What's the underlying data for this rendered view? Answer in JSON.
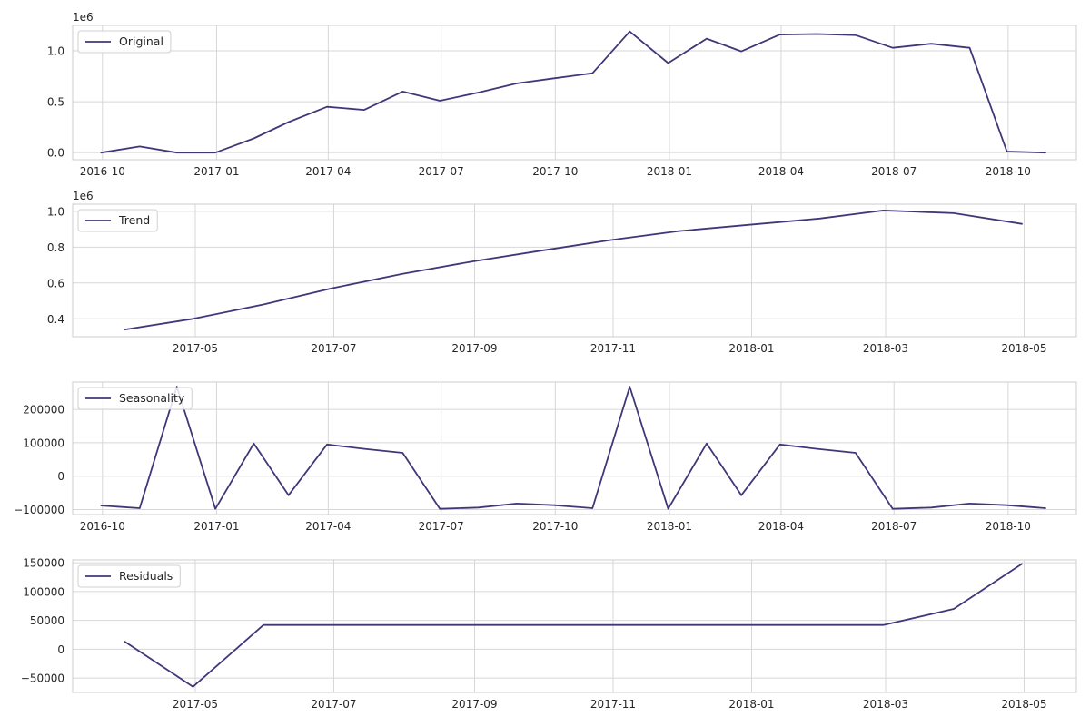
{
  "colors": {
    "line": "#3f3878",
    "grid": "#d7d7d7",
    "frame": "#cccccc",
    "text": "#262626",
    "background": "#ffffff"
  },
  "chart_data": [
    {
      "type": "line",
      "legend": "Original",
      "legend_position": "upper-left",
      "grid": true,
      "y_exponent_label": "1e6",
      "xlim": [
        "2016-09-07",
        "2018-11-25"
      ],
      "ylim": [
        -70000,
        1250000
      ],
      "xticks": [
        "2016-10-01",
        "2017-01-01",
        "2017-04-01",
        "2017-07-01",
        "2017-10-01",
        "2018-01-01",
        "2018-04-01",
        "2018-07-01",
        "2018-10-01"
      ],
      "xtick_labels": [
        "2016-10",
        "2017-01",
        "2017-04",
        "2017-07",
        "2017-10",
        "2018-01",
        "2018-04",
        "2018-07",
        "2018-10"
      ],
      "yticks": [
        0,
        500000,
        1000000
      ],
      "ytick_labels": [
        "0.0",
        "0.5",
        "1.0"
      ],
      "series": [
        {
          "x": [
            "2016-09-30",
            "2016-10-31",
            "2016-11-30",
            "2016-12-31",
            "2017-01-31",
            "2017-02-28",
            "2017-03-31",
            "2017-04-30",
            "2017-05-31",
            "2017-06-30",
            "2017-07-31",
            "2017-08-31",
            "2017-09-30",
            "2017-10-31",
            "2017-11-30",
            "2017-12-31",
            "2018-01-31",
            "2018-02-28",
            "2018-03-31",
            "2018-04-30",
            "2018-05-31",
            "2018-06-30",
            "2018-07-31",
            "2018-08-31",
            "2018-09-30",
            "2018-10-31"
          ],
          "y": [
            0,
            60000,
            0,
            0,
            140000,
            300000,
            450000,
            420000,
            600000,
            510000,
            590000,
            680000,
            730000,
            780000,
            1190000,
            880000,
            1120000,
            995000,
            1160000,
            1165000,
            1155000,
            1030000,
            1070000,
            1030000,
            10000,
            0
          ]
        }
      ]
    },
    {
      "type": "line",
      "legend": "Trend",
      "legend_position": "upper-left",
      "grid": true,
      "y_exponent_label": "1e6",
      "xlim": [
        "2017-03-08",
        "2018-05-24"
      ],
      "ylim": [
        0.3,
        1.04
      ],
      "xticks": [
        "2017-05-01",
        "2017-07-01",
        "2017-09-01",
        "2017-11-01",
        "2018-01-01",
        "2018-03-01",
        "2018-05-01"
      ],
      "xtick_labels": [
        "2017-05",
        "2017-07",
        "2017-09",
        "2017-11",
        "2018-01",
        "2018-03",
        "2018-05"
      ],
      "yticks": [
        0.4,
        0.6,
        0.8,
        1.0
      ],
      "ytick_labels": [
        "0.4",
        "0.6",
        "0.8",
        "1.0"
      ],
      "series": [
        {
          "x": [
            "2017-03-31",
            "2017-04-30",
            "2017-05-31",
            "2017-06-30",
            "2017-07-31",
            "2017-08-31",
            "2017-09-30",
            "2017-10-31",
            "2017-11-30",
            "2017-12-31",
            "2018-01-31",
            "2018-02-28",
            "2018-03-31",
            "2018-04-30"
          ],
          "y": [
            0.34,
            0.4,
            0.48,
            0.57,
            0.65,
            0.72,
            0.78,
            0.84,
            0.89,
            0.925,
            0.96,
            1.005,
            0.99,
            0.93
          ]
        }
      ]
    },
    {
      "type": "line",
      "legend": "Seasonality",
      "legend_position": "upper-left",
      "grid": true,
      "y_exponent_label": "",
      "xlim": [
        "2016-09-07",
        "2018-11-25"
      ],
      "ylim": [
        -115000,
        282000
      ],
      "xticks": [
        "2016-10-01",
        "2017-01-01",
        "2017-04-01",
        "2017-07-01",
        "2017-10-01",
        "2018-01-01",
        "2018-04-01",
        "2018-07-01",
        "2018-10-01"
      ],
      "xtick_labels": [
        "2016-10",
        "2017-01",
        "2017-04",
        "2017-07",
        "2017-10",
        "2018-01",
        "2018-04",
        "2018-07",
        "2018-10"
      ],
      "yticks": [
        -100000,
        0,
        100000,
        200000
      ],
      "ytick_labels": [
        "−100000",
        "0",
        "100000",
        "200000"
      ],
      "series": [
        {
          "x": [
            "2016-09-30",
            "2016-10-31",
            "2016-11-30",
            "2016-12-31",
            "2017-01-31",
            "2017-02-28",
            "2017-03-31",
            "2017-04-30",
            "2017-05-31",
            "2017-06-30",
            "2017-07-31",
            "2017-08-31",
            "2017-09-30",
            "2017-10-31",
            "2017-11-30",
            "2017-12-31",
            "2018-01-31",
            "2018-02-28",
            "2018-03-31",
            "2018-04-30",
            "2018-05-31",
            "2018-06-30",
            "2018-07-31",
            "2018-08-31",
            "2018-09-30",
            "2018-10-31"
          ],
          "y": [
            -88000,
            -96000,
            268000,
            -98000,
            98000,
            -57000,
            95000,
            82000,
            70000,
            -98000,
            -94000,
            -82000,
            -87000,
            -96000,
            268000,
            -98000,
            98000,
            -57000,
            95000,
            82000,
            70000,
            -98000,
            -94000,
            -82000,
            -87000,
            -96000
          ]
        }
      ]
    },
    {
      "type": "line",
      "legend": "Residuals",
      "legend_position": "upper-left",
      "grid": true,
      "y_exponent_label": "",
      "xlim": [
        "2017-03-08",
        "2018-05-24"
      ],
      "ylim": [
        -75000,
        155000
      ],
      "xticks": [
        "2017-05-01",
        "2017-07-01",
        "2017-09-01",
        "2017-11-01",
        "2018-01-01",
        "2018-03-01",
        "2018-05-01"
      ],
      "xtick_labels": [
        "2017-05",
        "2017-07",
        "2017-09",
        "2017-11",
        "2018-01",
        "2018-03",
        "2018-05"
      ],
      "yticks": [
        -50000,
        0,
        50000,
        100000,
        150000
      ],
      "ytick_labels": [
        "−50000",
        "0",
        "50000",
        "100000",
        "150000"
      ],
      "series": [
        {
          "x": [
            "2017-03-31",
            "2017-04-30",
            "2017-05-31",
            "2017-06-30",
            "2017-07-31",
            "2017-08-31",
            "2017-09-30",
            "2017-10-31",
            "2017-11-30",
            "2017-12-31",
            "2018-01-31",
            "2018-02-28",
            "2018-03-31",
            "2018-04-30"
          ],
          "y": [
            13000,
            -65000,
            42000,
            42000,
            42000,
            42000,
            42000,
            42000,
            42000,
            42000,
            42000,
            42000,
            70000,
            148000
          ]
        }
      ]
    }
  ]
}
